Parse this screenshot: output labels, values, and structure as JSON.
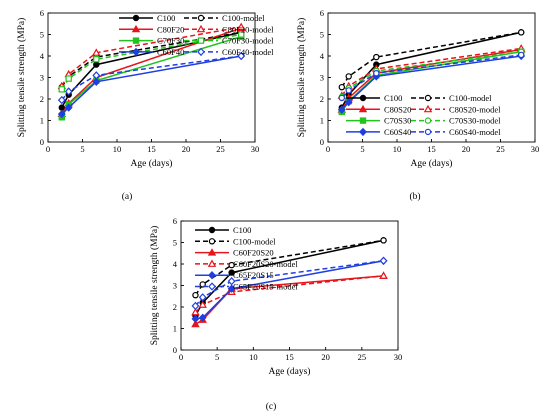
{
  "chart_data": [
    {
      "type": "line",
      "panel_label": "(a)",
      "xlabel": "Age (days)",
      "ylabel": "Splitting tensile strength (MPa)",
      "xlim": [
        0,
        30
      ],
      "ylim": [
        0,
        6
      ],
      "xticks": [
        0,
        5,
        10,
        15,
        20,
        25,
        30
      ],
      "yticks": [
        0,
        1,
        2,
        3,
        4,
        5,
        6
      ],
      "legend_position": "inside-top",
      "series": [
        {
          "name": "C100",
          "color": "#000000",
          "dash": "solid",
          "marker": "circle-filled",
          "x": [
            2,
            3,
            7,
            28
          ],
          "y": [
            1.6,
            2.2,
            3.6,
            5.1
          ]
        },
        {
          "name": "C100-model",
          "color": "#000000",
          "dash": "dashed",
          "marker": "circle-open",
          "x": [
            2,
            3,
            7,
            28
          ],
          "y": [
            2.55,
            3.05,
            3.95,
            5.1
          ]
        },
        {
          "name": "C80F20",
          "color": "#e8141b",
          "dash": "solid",
          "marker": "triangle-filled",
          "x": [
            2,
            3,
            7,
            28
          ],
          "y": [
            1.3,
            1.8,
            3.0,
            5.3
          ]
        },
        {
          "name": "C80F20-model",
          "color": "#e8141b",
          "dash": "dashed",
          "marker": "triangle-open",
          "x": [
            2,
            3,
            7,
            28
          ],
          "y": [
            2.6,
            3.15,
            4.15,
            5.35
          ]
        },
        {
          "name": "C70F30",
          "color": "#22c31d",
          "dash": "solid",
          "marker": "square-filled",
          "x": [
            2,
            3,
            7,
            28
          ],
          "y": [
            1.15,
            1.75,
            2.85,
            4.9
          ]
        },
        {
          "name": "C70F30-model",
          "color": "#22c31d",
          "dash": "dashed",
          "marker": "square-open",
          "x": [
            2,
            3,
            7,
            28
          ],
          "y": [
            2.45,
            2.95,
            3.85,
            5.0
          ]
        },
        {
          "name": "C60F40",
          "color": "#1f3fe0",
          "dash": "solid",
          "marker": "diamond-filled",
          "x": [
            2,
            3,
            7,
            28
          ],
          "y": [
            1.3,
            1.6,
            2.8,
            4.0
          ]
        },
        {
          "name": "C60F40-model",
          "color": "#1f3fe0",
          "dash": "dashed",
          "marker": "diamond-open",
          "x": [
            2,
            3,
            7,
            28
          ],
          "y": [
            1.95,
            2.35,
            3.1,
            4.0
          ]
        }
      ]
    },
    {
      "type": "line",
      "panel_label": "(b)",
      "xlabel": "Age (days)",
      "ylabel": "Splitting tensile strength (MPa)",
      "xlim": [
        0,
        30
      ],
      "ylim": [
        0,
        6
      ],
      "xticks": [
        0,
        5,
        10,
        15,
        20,
        25,
        30
      ],
      "yticks": [
        0,
        1,
        2,
        3,
        4,
        5,
        6
      ],
      "legend_position": "inside-bottom-right",
      "series": [
        {
          "name": "C100",
          "color": "#000000",
          "dash": "solid",
          "marker": "circle-filled",
          "x": [
            2,
            3,
            7,
            28
          ],
          "y": [
            1.6,
            2.2,
            3.6,
            5.1
          ]
        },
        {
          "name": "C100-model",
          "color": "#000000",
          "dash": "dashed",
          "marker": "circle-open",
          "x": [
            2,
            3,
            7,
            28
          ],
          "y": [
            2.55,
            3.05,
            3.95,
            5.1
          ]
        },
        {
          "name": "C80S20",
          "color": "#e8141b",
          "dash": "solid",
          "marker": "triangle-filled",
          "x": [
            2,
            3,
            7,
            28
          ],
          "y": [
            1.5,
            2.05,
            3.2,
            4.3
          ]
        },
        {
          "name": "C80S20-model",
          "color": "#e8141b",
          "dash": "dashed",
          "marker": "triangle-open",
          "x": [
            2,
            3,
            7,
            28
          ],
          "y": [
            2.15,
            2.6,
            3.4,
            4.35
          ]
        },
        {
          "name": "C70S30",
          "color": "#22c31d",
          "dash": "solid",
          "marker": "square-filled",
          "x": [
            2,
            3,
            7,
            28
          ],
          "y": [
            1.4,
            1.9,
            3.1,
            4.2
          ]
        },
        {
          "name": "C70S30-model",
          "color": "#22c31d",
          "dash": "dashed",
          "marker": "circle-open",
          "x": [
            2,
            3,
            7,
            28
          ],
          "y": [
            2.1,
            2.5,
            3.3,
            4.2
          ]
        },
        {
          "name": "C60S40",
          "color": "#1f3fe0",
          "dash": "solid",
          "marker": "diamond-filled",
          "x": [
            2,
            3,
            7,
            28
          ],
          "y": [
            1.5,
            1.85,
            3.05,
            4.0
          ]
        },
        {
          "name": "C60S40-model",
          "color": "#1f3fe0",
          "dash": "dashed",
          "marker": "circle-open",
          "x": [
            2,
            3,
            7,
            28
          ],
          "y": [
            2.05,
            2.4,
            3.2,
            4.05
          ]
        }
      ]
    },
    {
      "type": "line",
      "panel_label": "(c)",
      "xlabel": "Age (days)",
      "ylabel": "Splitting tensile strength (MPa)",
      "xlim": [
        0,
        30
      ],
      "ylim": [
        0,
        6
      ],
      "xticks": [
        0,
        5,
        10,
        15,
        20,
        25,
        30
      ],
      "yticks": [
        0,
        1,
        2,
        3,
        4,
        5,
        6
      ],
      "legend_position": "inside-bottom-right",
      "series": [
        {
          "name": "C100",
          "color": "#000000",
          "dash": "solid",
          "marker": "circle-filled",
          "x": [
            2,
            3,
            7,
            28
          ],
          "y": [
            1.6,
            2.2,
            3.6,
            5.1
          ]
        },
        {
          "name": "C100-model",
          "color": "#000000",
          "dash": "dashed",
          "marker": "circle-open",
          "x": [
            2,
            3,
            7,
            28
          ],
          "y": [
            2.55,
            3.05,
            3.95,
            5.1
          ]
        },
        {
          "name": "C60F20S20",
          "color": "#e8141b",
          "dash": "solid",
          "marker": "triangle-filled",
          "x": [
            2,
            3,
            7,
            28
          ],
          "y": [
            1.2,
            1.4,
            2.85,
            3.45
          ]
        },
        {
          "name": "C60F20S20-model",
          "color": "#e8141b",
          "dash": "dashed",
          "marker": "triangle-open",
          "x": [
            2,
            3,
            7,
            28
          ],
          "y": [
            1.75,
            2.1,
            2.7,
            3.45
          ]
        },
        {
          "name": "C65F20S15",
          "color": "#1f3fe0",
          "dash": "solid",
          "marker": "diamond-filled",
          "x": [
            2,
            3,
            7,
            28
          ],
          "y": [
            1.45,
            1.5,
            2.85,
            4.15
          ]
        },
        {
          "name": "C65F20S15-model",
          "color": "#1f3fe0",
          "dash": "dashed",
          "marker": "diamond-open",
          "x": [
            2,
            3,
            7,
            28
          ],
          "y": [
            2.05,
            2.45,
            3.2,
            4.15
          ]
        }
      ]
    }
  ]
}
